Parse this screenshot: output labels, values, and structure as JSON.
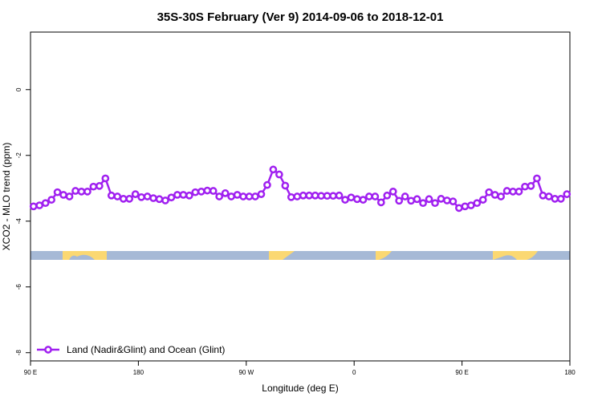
{
  "chart_data": {
    "type": "line",
    "title": "35S-30S February (Ver 9)   2014-09-06 to 2018-12-01",
    "xlabel": "Longitude (deg E)",
    "ylabel": "XCO2 - MLO trend (ppm)",
    "x": [
      92.5,
      97.5,
      102.5,
      107.5,
      112.5,
      117.5,
      122.5,
      127.5,
      132.5,
      137.5,
      142.5,
      147.5,
      152.5,
      157.5,
      162.5,
      167.5,
      172.5,
      177.5,
      182.5,
      187.5,
      192.5,
      197.5,
      202.5,
      207.5,
      212.5,
      217.5,
      222.5,
      227.5,
      232.5,
      237.5,
      242.5,
      247.5,
      252.5,
      257.5,
      262.5,
      267.5,
      272.5,
      277.5,
      282.5,
      287.5,
      292.5,
      297.5,
      302.5,
      307.5,
      312.5,
      317.5,
      322.5,
      327.5,
      332.5,
      337.5,
      342.5,
      347.5,
      352.5,
      357.5,
      362.5,
      367.5,
      372.5,
      377.5,
      382.5,
      387.5,
      392.5,
      397.5,
      402.5,
      407.5,
      412.5,
      417.5,
      422.5,
      427.5,
      432.5,
      437.5,
      442.5,
      447.5,
      452.5,
      457.5,
      462.5,
      467.5,
      472.5,
      477.5,
      482.5,
      487.5,
      492.5,
      497.5,
      502.5,
      507.5,
      512.5,
      517.5,
      522.5,
      527.5,
      532.5,
      537.5
    ],
    "series": [
      {
        "name": "Land (Nadir&Glint) and Ocean (Glint)",
        "color": "#a020f0",
        "values": [
          -3.55,
          -3.52,
          -3.45,
          -3.35,
          -3.12,
          -3.2,
          -3.25,
          -3.08,
          -3.1,
          -3.1,
          -2.95,
          -2.93,
          -2.7,
          -3.22,
          -3.25,
          -3.32,
          -3.32,
          -3.18,
          -3.27,
          -3.25,
          -3.3,
          -3.33,
          -3.37,
          -3.28,
          -3.2,
          -3.2,
          -3.22,
          -3.12,
          -3.1,
          -3.07,
          -3.08,
          -3.25,
          -3.15,
          -3.25,
          -3.2,
          -3.25,
          -3.25,
          -3.25,
          -3.18,
          -2.9,
          -2.43,
          -2.58,
          -2.92,
          -3.27,
          -3.25,
          -3.22,
          -3.22,
          -3.22,
          -3.23,
          -3.23,
          -3.23,
          -3.22,
          -3.35,
          -3.28,
          -3.33,
          -3.35,
          -3.25,
          -3.25,
          -3.43,
          -3.22,
          -3.1,
          -3.38,
          -3.25,
          -3.38,
          -3.33,
          -3.45,
          -3.33,
          -3.45,
          -3.32,
          -3.37,
          -3.4,
          -3.6,
          -3.55,
          -3.52,
          -3.45,
          -3.35,
          -3.12,
          -3.2,
          -3.25,
          -3.08,
          -3.1,
          -3.1,
          -2.95,
          -2.93,
          -2.7,
          -3.22,
          -3.25,
          -3.32,
          -3.32,
          -3.18
        ]
      }
    ],
    "xlim": [
      90,
      540
    ],
    "xticks": [
      {
        "value": 90,
        "label": "90 E"
      },
      {
        "value": 180,
        "label": "180"
      },
      {
        "value": 270,
        "label": "90 W"
      },
      {
        "value": 360,
        "label": "0"
      },
      {
        "value": 450,
        "label": "90 E"
      },
      {
        "value": 540,
        "label": "180"
      }
    ],
    "ylim": [
      -8.25,
      1.75
    ],
    "yticks": [
      -8,
      -6,
      -4,
      -2,
      0
    ],
    "legend": "lower left"
  }
}
